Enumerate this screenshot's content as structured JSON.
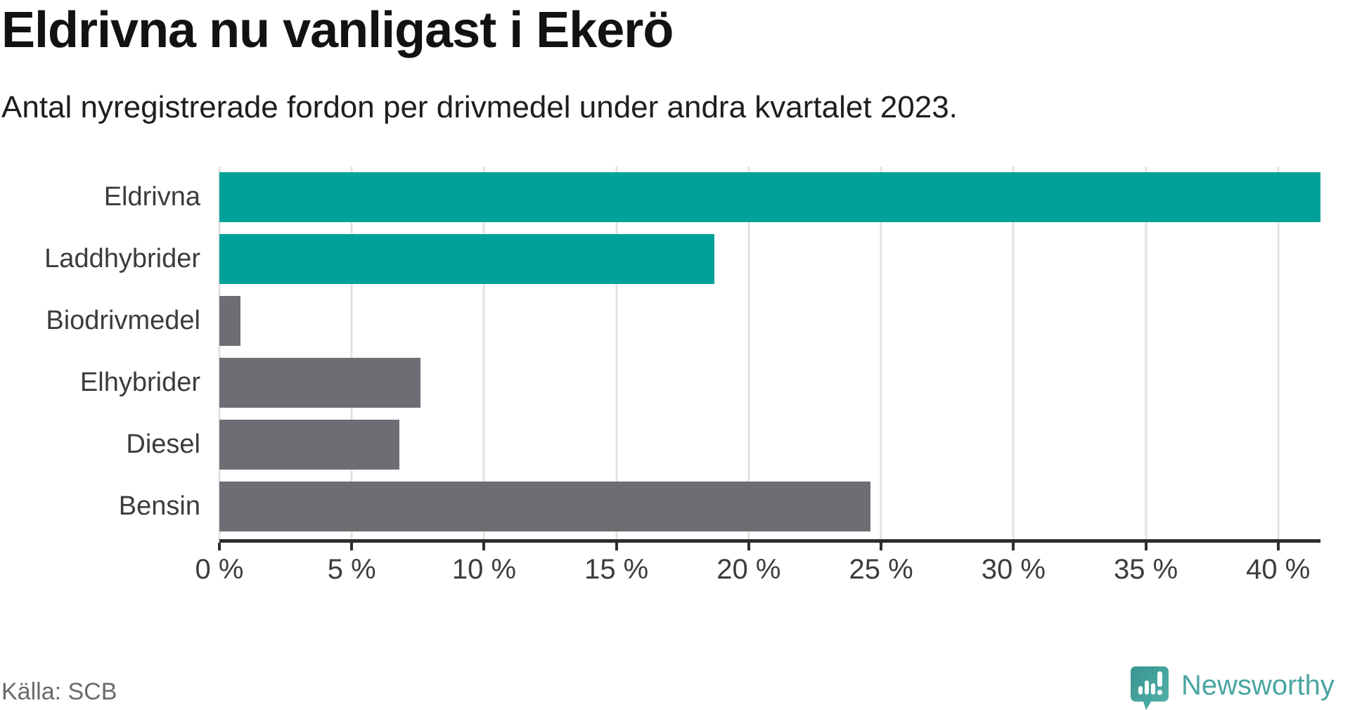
{
  "header": {
    "title": "Eldrivna nu vanligast i Ekerö",
    "subtitle": "Antal nyregistrerade fordon per drivmedel under andra kvartalet 2023."
  },
  "footer": {
    "source": "Källa: SCB",
    "brand": "Newsworthy"
  },
  "colors": {
    "accent_teal": "#00A199",
    "muted_gray": "#6D6D73",
    "gridline": "#E2E2E2",
    "axis": "#2D2D2D",
    "tick_label": "#3C3C3C",
    "source_text": "#6A6A6E",
    "brand_teal": "#4AA5A1"
  },
  "icons": {
    "brand_icon": "newsworthy-speech-bubble-chart-icon"
  },
  "chart_data": {
    "type": "bar",
    "orientation": "horizontal",
    "title": "Eldrivna nu vanligast i Ekerö",
    "subtitle": "Antal nyregistrerade fordon per drivmedel under andra kvartalet 2023.",
    "categories": [
      "Eldrivna",
      "Laddhybrider",
      "Biodrivmedel",
      "Elhybrider",
      "Diesel",
      "Bensin"
    ],
    "values": [
      41.6,
      18.7,
      0.8,
      7.6,
      6.8,
      24.6
    ],
    "bar_colors": [
      "#00A199",
      "#00A199",
      "#6D6D73",
      "#6D6D73",
      "#6D6D73",
      "#6D6D73"
    ],
    "unit": "%",
    "xlabel": "",
    "ylabel": "",
    "x_tick_values": [
      0,
      5,
      10,
      15,
      20,
      25,
      30,
      35,
      40
    ],
    "x_tick_labels": [
      "0 %",
      "5 %",
      "10 %",
      "15 %",
      "20 %",
      "25 %",
      "30 %",
      "35 %",
      "40 %"
    ],
    "xlim": [
      0,
      41.6
    ],
    "grid": true,
    "legend": false
  }
}
